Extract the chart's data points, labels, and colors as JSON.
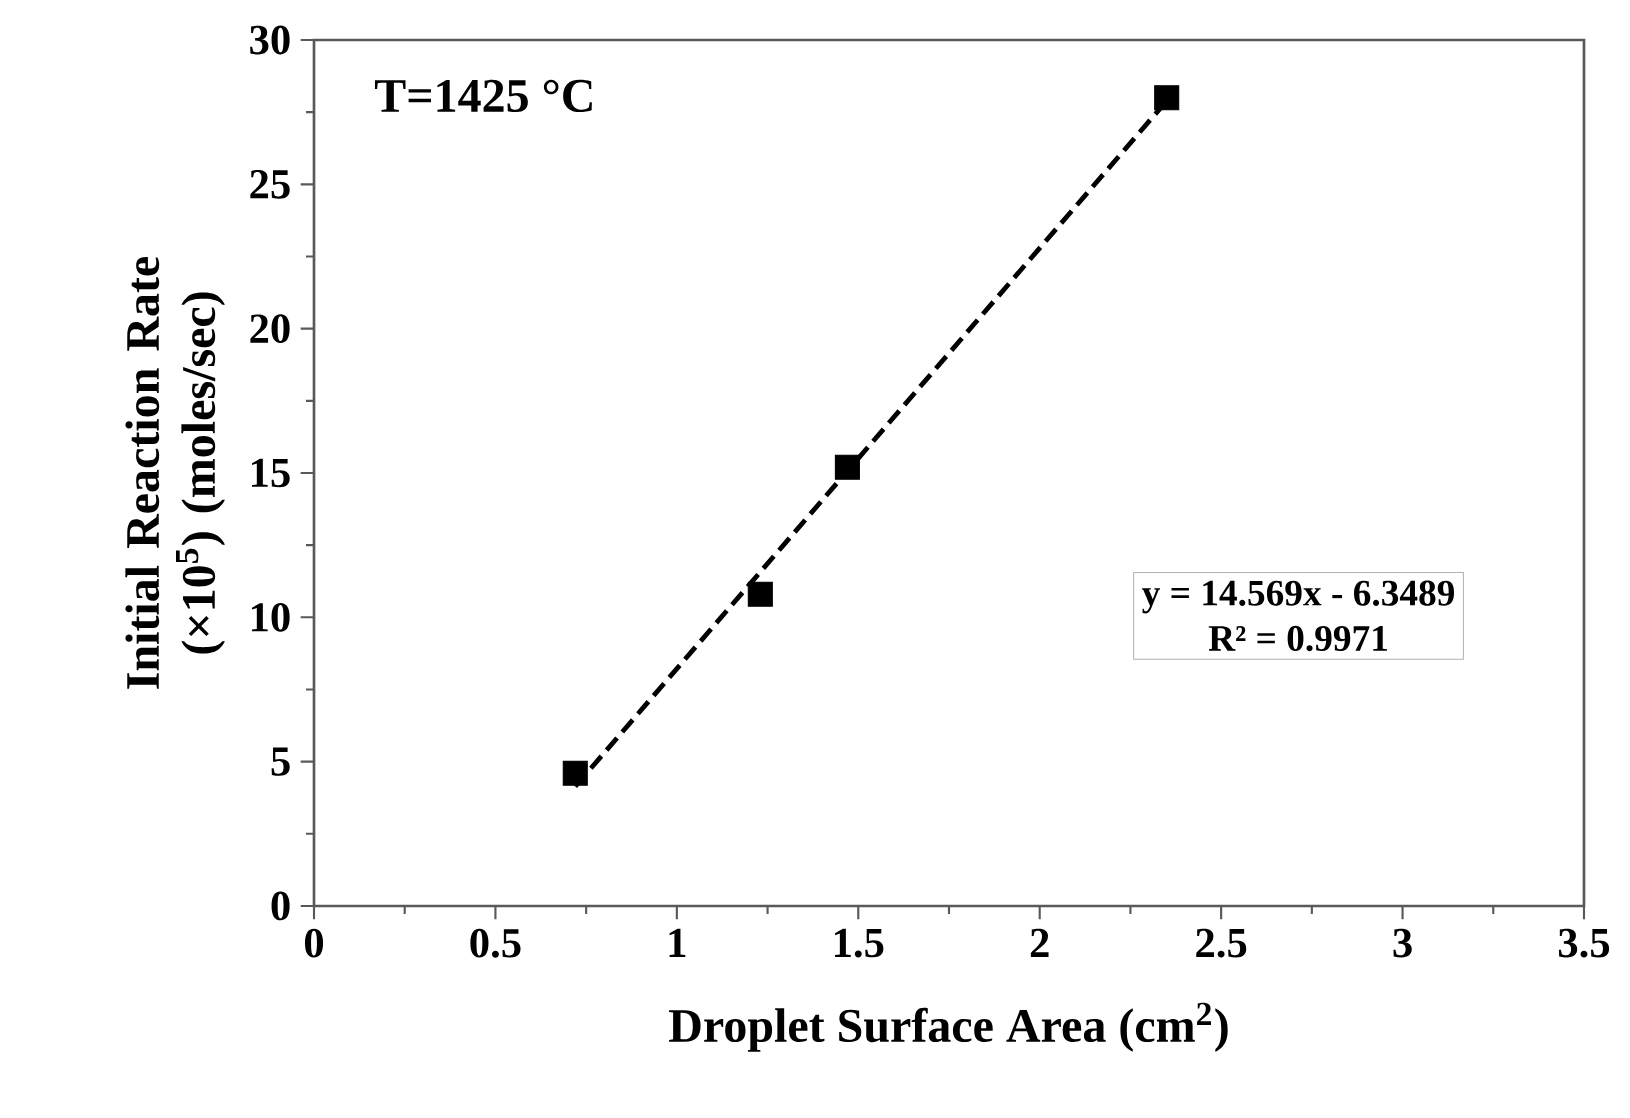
{
  "chart_data": {
    "type": "scatter",
    "xlabel": "Droplet Surface Area (cm$^{2}$)",
    "ylabel": "Initial Reaction Rate (×10$^{5}$) (moles/sec)",
    "annotations": [
      "T=1425 °C",
      "y = 14.569x - 6.3489",
      "R² = 0.9971"
    ],
    "series": [
      {
        "color": "#000000",
        "marker": "square",
        "x": [
          0.72,
          1.23,
          1.47,
          2.35
        ],
        "values": [
          4.6,
          10.8,
          15.2,
          28.0
        ]
      },
      {
        "type": "line",
        "color": "#000000",
        "line_style": "dashed",
        "marker": "none",
        "x": [
          0.72,
          2.35
        ],
        "values": [
          4.14,
          27.89
        ]
      }
    ],
    "xlim": [
      0,
      3.5
    ],
    "xticks": [
      0,
      0.5,
      1,
      1.5,
      2,
      2.5,
      3,
      3.5
    ],
    "ylim": [
      0,
      30
    ],
    "yticks": [
      0,
      5,
      10,
      15,
      20,
      25,
      30
    ],
    "grid": false
  }
}
